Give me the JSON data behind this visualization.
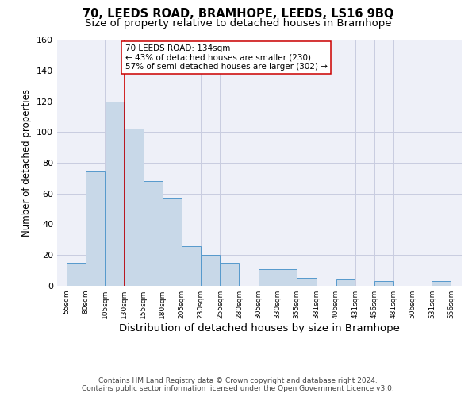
{
  "title": "70, LEEDS ROAD, BRAMHOPE, LEEDS, LS16 9BQ",
  "subtitle": "Size of property relative to detached houses in Bramhope",
  "xlabel": "Distribution of detached houses by size in Bramhope",
  "ylabel": "Number of detached properties",
  "footnote1": "Contains HM Land Registry data © Crown copyright and database right 2024.",
  "footnote2": "Contains public sector information licensed under the Open Government Licence v3.0.",
  "bar_left_edges": [
    55,
    80,
    105,
    130,
    155,
    180,
    205,
    230,
    255,
    280,
    305,
    330,
    355,
    381,
    406,
    431,
    456,
    481,
    506,
    531
  ],
  "bar_widths": [
    25,
    25,
    25,
    25,
    25,
    25,
    25,
    25,
    25,
    25,
    25,
    25,
    26,
    25,
    25,
    25,
    25,
    25,
    25,
    25
  ],
  "bar_heights": [
    15,
    75,
    120,
    102,
    68,
    57,
    26,
    20,
    15,
    0,
    11,
    11,
    5,
    0,
    4,
    0,
    3,
    0,
    0,
    3
  ],
  "bar_color": "#c8d8e8",
  "bar_edge_color": "#5599cc",
  "property_line_x": 130,
  "property_line_color": "#cc0000",
  "annotation_line1": "70 LEEDS ROAD: 134sqm",
  "annotation_line2": "← 43% of detached houses are smaller (230)",
  "annotation_line3": "57% of semi-detached houses are larger (302) →",
  "ylim": [
    0,
    160
  ],
  "yticks": [
    0,
    20,
    40,
    60,
    80,
    100,
    120,
    140,
    160
  ],
  "tick_labels": [
    "55sqm",
    "80sqm",
    "105sqm",
    "130sqm",
    "155sqm",
    "180sqm",
    "205sqm",
    "230sqm",
    "255sqm",
    "280sqm",
    "305sqm",
    "330sqm",
    "355sqm",
    "381sqm",
    "406sqm",
    "431sqm",
    "456sqm",
    "481sqm",
    "506sqm",
    "531sqm",
    "556sqm"
  ],
  "tick_positions": [
    55,
    80,
    105,
    130,
    155,
    180,
    205,
    230,
    255,
    280,
    305,
    330,
    355,
    381,
    406,
    431,
    456,
    481,
    506,
    531,
    556
  ],
  "xlim_left": 42.5,
  "xlim_right": 570,
  "background_color": "#eef0f8",
  "grid_color": "#c8cce0",
  "title_fontsize": 10.5,
  "subtitle_fontsize": 9.5,
  "ylabel_fontsize": 8.5,
  "xlabel_fontsize": 9.5,
  "footnote_fontsize": 6.5
}
